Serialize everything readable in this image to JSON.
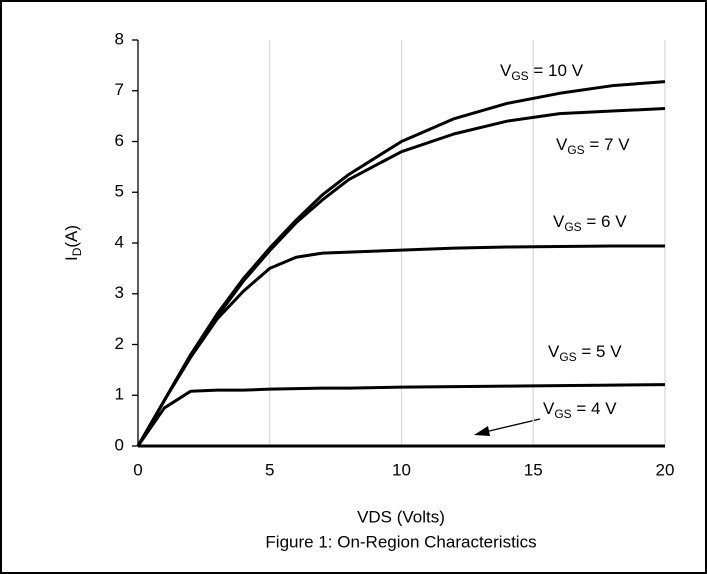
{
  "chart_data": {
    "type": "line",
    "caption": "Figure 1: On-Region Characteristics",
    "x_label": "VDS (Volts)",
    "y_label": "ID(A)",
    "x": [
      0,
      1,
      2,
      3,
      4,
      5,
      6,
      7,
      8,
      10,
      12,
      14,
      16,
      18,
      20
    ],
    "series": [
      {
        "name": "VGS = 10 V",
        "color": "#000000",
        "values": [
          0,
          0.9,
          1.8,
          2.6,
          3.3,
          3.9,
          4.45,
          4.95,
          5.35,
          6.0,
          6.45,
          6.75,
          6.95,
          7.1,
          7.18
        ]
      },
      {
        "name": "VGS = 7 V",
        "color": "#000000",
        "values": [
          0,
          0.9,
          1.8,
          2.55,
          3.25,
          3.85,
          4.4,
          4.85,
          5.25,
          5.8,
          6.15,
          6.4,
          6.55,
          6.6,
          6.65
        ]
      },
      {
        "name": "VGS = 6 V",
        "color": "#000000",
        "values": [
          0,
          0.9,
          1.75,
          2.5,
          3.05,
          3.5,
          3.72,
          3.8,
          3.82,
          3.86,
          3.9,
          3.92,
          3.93,
          3.94,
          3.94
        ]
      },
      {
        "name": "VGS = 5 V",
        "color": "#000000",
        "values": [
          0,
          0.75,
          1.08,
          1.1,
          1.1,
          1.12,
          1.13,
          1.14,
          1.14,
          1.16,
          1.17,
          1.18,
          1.19,
          1.2,
          1.21
        ]
      },
      {
        "name": "VGS = 4 V",
        "color": "#000000",
        "values": [
          0,
          0,
          0,
          0,
          0,
          0,
          0,
          0,
          0,
          0,
          0,
          0,
          0,
          0,
          0
        ]
      }
    ],
    "xlim": [
      0,
      20
    ],
    "xticks": [
      0,
      5,
      10,
      15,
      20
    ],
    "ylim": [
      0,
      8
    ],
    "yticks": [
      0,
      1,
      2,
      3,
      4,
      5,
      6,
      7,
      8
    ],
    "grid": "x"
  }
}
